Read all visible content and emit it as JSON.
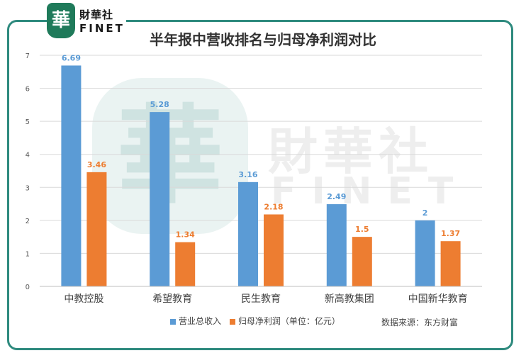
{
  "brand": {
    "logo_char": "華",
    "name_cn": "財華社",
    "name_en": "FINET"
  },
  "watermark": {
    "seal_char": "華",
    "name_cn": "財華社",
    "name_en": "FINET"
  },
  "colors": {
    "series1": "#5b9bd5",
    "series2": "#ed7d31",
    "frame": "#2e8a7e"
  },
  "chart_data": {
    "type": "bar",
    "title": "半年报中营收排名与归母净利润对比",
    "categories": [
      "中教控股",
      "希望教育",
      "民生教育",
      "新高教集团",
      "中国新华教育"
    ],
    "series": [
      {
        "name": "营业总收入",
        "values": [
          6.69,
          5.28,
          3.16,
          2.49,
          2
        ],
        "labels": [
          "6.69",
          "5.28",
          "3.16",
          "2.49",
          "2"
        ]
      },
      {
        "name": "归母净利润（单位：亿元）",
        "values": [
          3.46,
          1.34,
          2.18,
          1.5,
          1.37
        ],
        "labels": [
          "3.46",
          "1.34",
          "2.18",
          "1.5",
          "1.37"
        ]
      }
    ],
    "ylim": [
      0,
      7
    ],
    "yticks": [
      "0",
      "1",
      "2",
      "3",
      "4",
      "5",
      "6",
      "7"
    ],
    "grid": true,
    "legend_position": "bottom",
    "source": "数据来源：东方财富"
  }
}
